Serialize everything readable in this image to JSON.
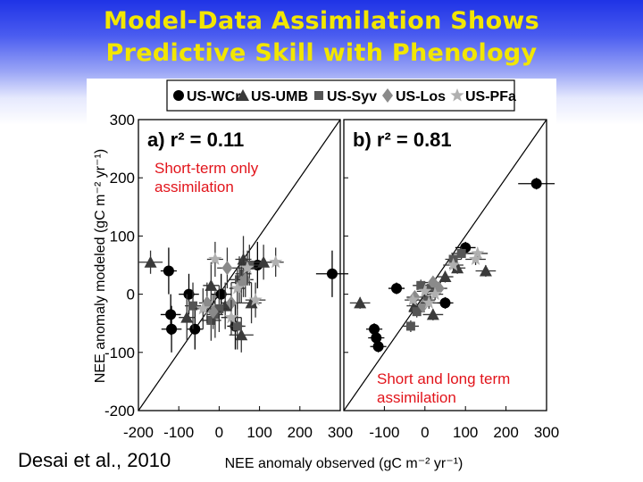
{
  "slide": {
    "title_line1": "Model-Data Assimilation Shows",
    "title_line2": "Predictive Skill with Phenology",
    "citation": "Desai et al., 2010"
  },
  "legend": {
    "entries": [
      {
        "label": "US-WCr",
        "marker": "circle",
        "color": "#000000"
      },
      {
        "label": "US-UMB",
        "marker": "triangle-up",
        "color": "#3a3a3a"
      },
      {
        "label": "US-Syv",
        "marker": "square",
        "color": "#555555"
      },
      {
        "label": "US-Los",
        "marker": "diamond",
        "color": "#8a8a8a"
      },
      {
        "label": "US-PFa",
        "marker": "star",
        "color": "#b0b0b0"
      }
    ]
  },
  "chart_data": [
    {
      "type": "scatter",
      "panel_label": "a) r² = 0.11",
      "annotation": "Short-term only assimilation",
      "annotation_color": "#e2141b",
      "xlabel": "NEE anomaly observed (gC m⁻² yr⁻¹)",
      "ylabel": "NEE anomaly modeled (gC m⁻² yr⁻¹)",
      "xlim": [
        -200,
        300
      ],
      "ylim": [
        -200,
        300
      ],
      "xticks": [
        -200,
        -100,
        0,
        100,
        200,
        300
      ],
      "yticks": [
        -200,
        -100,
        0,
        100,
        200,
        300
      ],
      "one_to_one_line": true,
      "series": [
        {
          "name": "US-WCr",
          "marker": "circle",
          "color": "#000000",
          "points": [
            [
              -125,
              40,
              20,
              40
            ],
            [
              -120,
              -35,
              25,
              35
            ],
            [
              -118,
              -60,
              25,
              40
            ],
            [
              -75,
              0,
              25,
              35
            ],
            [
              -60,
              -60,
              20,
              35
            ],
            [
              5,
              0,
              25,
              35
            ],
            [
              40,
              -55,
              20,
              40
            ],
            [
              95,
              50,
              20,
              40
            ],
            [
              280,
              35,
              40,
              40
            ]
          ]
        },
        {
          "name": "US-UMB",
          "marker": "triangle-up",
          "color": "#3a3a3a",
          "points": [
            [
              -170,
              55,
              30,
              20
            ],
            [
              -80,
              -40,
              20,
              40
            ],
            [
              -20,
              15,
              20,
              40
            ],
            [
              15,
              -20,
              20,
              40
            ],
            [
              55,
              -70,
              30,
              30
            ],
            [
              60,
              60,
              20,
              40
            ],
            [
              80,
              -15,
              25,
              35
            ],
            [
              110,
              55,
              30,
              30
            ]
          ]
        },
        {
          "name": "US-Syv",
          "marker": "square",
          "color": "#555555",
          "points": [
            [
              -65,
              -20,
              20,
              40
            ],
            [
              -20,
              -45,
              25,
              35
            ],
            [
              -10,
              -35,
              20,
              40
            ],
            [
              0,
              -25,
              20,
              40
            ],
            [
              45,
              -55,
              20,
              40
            ],
            [
              50,
              25,
              25,
              40
            ],
            [
              60,
              35,
              20,
              40
            ],
            [
              75,
              50,
              25,
              35
            ]
          ]
        },
        {
          "name": "US-Los",
          "marker": "diamond",
          "color": "#8a8a8a",
          "points": [
            [
              -30,
              -15,
              20,
              35
            ],
            [
              -15,
              -30,
              20,
              30
            ],
            [
              20,
              45,
              25,
              35
            ],
            [
              30,
              -15,
              25,
              35
            ],
            [
              55,
              20,
              25,
              35
            ],
            [
              65,
              25,
              20,
              30
            ]
          ]
        },
        {
          "name": "US-PFa",
          "marker": "star",
          "color": "#b0b0b0",
          "points": [
            [
              -40,
              -25,
              20,
              35
            ],
            [
              -10,
              60,
              20,
              30
            ],
            [
              30,
              -40,
              25,
              30
            ],
            [
              45,
              10,
              20,
              35
            ],
            [
              70,
              45,
              25,
              30
            ],
            [
              90,
              -10,
              25,
              30
            ],
            [
              140,
              55,
              20,
              25
            ]
          ]
        }
      ]
    },
    {
      "type": "scatter",
      "panel_label": "b) r² = 0.81",
      "annotation": "Short and long term assimilation",
      "annotation_color": "#e2141b",
      "xlabel": "NEE anomaly observed (gC m⁻² yr⁻¹)",
      "ylabel": "NEE anomaly modeled (gC m⁻² yr⁻¹)",
      "xlim": [
        -200,
        300
      ],
      "ylim": [
        -200,
        300
      ],
      "xticks": [
        -100,
        0,
        100,
        200,
        300
      ],
      "yticks": [
        -200,
        -100,
        0,
        100,
        200,
        300
      ],
      "one_to_one_line": true,
      "series": [
        {
          "name": "US-WCr",
          "marker": "circle",
          "color": "#000000",
          "points": [
            [
              -125,
              -60,
              20,
              10
            ],
            [
              -120,
              -75,
              20,
              10
            ],
            [
              -115,
              -90,
              20,
              10
            ],
            [
              -70,
              10,
              20,
              10
            ],
            [
              50,
              -15,
              20,
              10
            ],
            [
              100,
              80,
              25,
              10
            ],
            [
              275,
              190,
              45,
              10
            ]
          ]
        },
        {
          "name": "US-UMB",
          "marker": "triangle-up",
          "color": "#3a3a3a",
          "points": [
            [
              -160,
              -15,
              25,
              10
            ],
            [
              -25,
              -20,
              20,
              10
            ],
            [
              20,
              -35,
              25,
              10
            ],
            [
              50,
              30,
              20,
              10
            ],
            [
              80,
              45,
              20,
              10
            ],
            [
              150,
              40,
              25,
              10
            ]
          ]
        },
        {
          "name": "US-Syv",
          "marker": "square",
          "color": "#555555",
          "points": [
            [
              -10,
              15,
              20,
              10
            ],
            [
              -35,
              -55,
              20,
              10
            ],
            [
              -20,
              -30,
              20,
              10
            ],
            [
              5,
              -10,
              20,
              10
            ],
            [
              15,
              10,
              20,
              10
            ],
            [
              70,
              60,
              20,
              10
            ],
            [
              90,
              70,
              25,
              10
            ]
          ]
        },
        {
          "name": "US-Los",
          "marker": "diamond",
          "color": "#8a8a8a",
          "points": [
            [
              -25,
              -5,
              20,
              10
            ],
            [
              -5,
              -20,
              20,
              10
            ],
            [
              20,
              20,
              20,
              10
            ],
            [
              35,
              10,
              20,
              10
            ]
          ]
        },
        {
          "name": "US-PFa",
          "marker": "star",
          "color": "#b0b0b0",
          "points": [
            [
              -30,
              -10,
              20,
              10
            ],
            [
              0,
              5,
              20,
              10
            ],
            [
              10,
              -15,
              20,
              10
            ],
            [
              25,
              0,
              20,
              10
            ],
            [
              70,
              50,
              25,
              10
            ],
            [
              130,
              70,
              25,
              10
            ],
            [
              125,
              60,
              25,
              10
            ]
          ]
        }
      ]
    }
  ]
}
